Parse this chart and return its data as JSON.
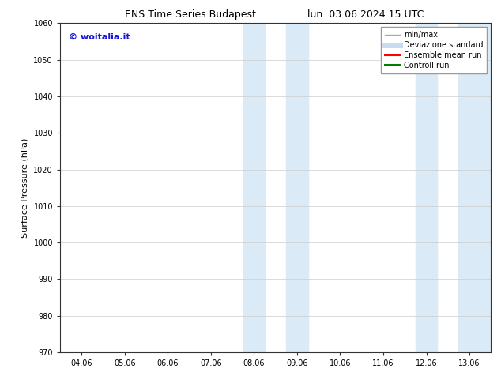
{
  "title_left": "ENS Time Series Budapest",
  "title_right": "lun. 03.06.2024 15 UTC",
  "ylabel": "Surface Pressure (hPa)",
  "ylim": [
    970,
    1060
  ],
  "yticks": [
    970,
    980,
    990,
    1000,
    1010,
    1020,
    1030,
    1040,
    1050,
    1060
  ],
  "xtick_labels": [
    "04.06",
    "05.06",
    "06.06",
    "07.06",
    "08.06",
    "09.06",
    "10.06",
    "11.06",
    "12.06",
    "13.06"
  ],
  "xtick_positions": [
    0,
    1,
    2,
    3,
    4,
    5,
    6,
    7,
    8,
    9
  ],
  "xlim": [
    -0.5,
    9.5
  ],
  "shaded_regions": [
    {
      "xmin": 3.75,
      "xmax": 4.25,
      "color": "#daeaf7"
    },
    {
      "xmin": 4.75,
      "xmax": 5.25,
      "color": "#daeaf7"
    },
    {
      "xmin": 7.75,
      "xmax": 8.25,
      "color": "#daeaf7"
    },
    {
      "xmin": 8.75,
      "xmax": 9.5,
      "color": "#daeaf7"
    }
  ],
  "watermark_text": "© woitalia.it",
  "watermark_color": "#1515dd",
  "legend_entries": [
    {
      "label": "min/max",
      "color": "#aaaaaa",
      "linewidth": 1.0,
      "linestyle": "-"
    },
    {
      "label": "Deviazione standard",
      "color": "#c8dcf0",
      "linewidth": 5,
      "linestyle": "-"
    },
    {
      "label": "Ensemble mean run",
      "color": "red",
      "linewidth": 1.5,
      "linestyle": "-"
    },
    {
      "label": "Controll run",
      "color": "green",
      "linewidth": 1.5,
      "linestyle": "-"
    }
  ],
  "bg_color": "#ffffff",
  "grid_color": "#cccccc",
  "title_fontsize": 9,
  "axis_label_fontsize": 8,
  "tick_fontsize": 7,
  "watermark_fontsize": 8,
  "legend_fontsize": 7
}
